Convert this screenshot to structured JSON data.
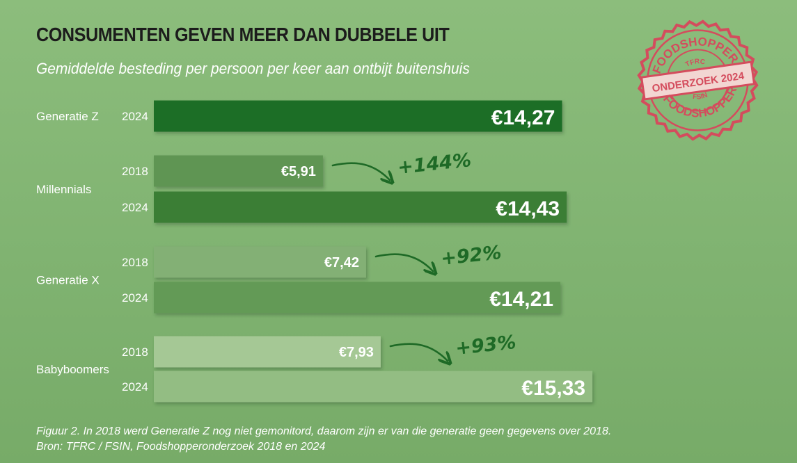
{
  "header": {
    "title": "CONSUMENTEN GEVEN MEER DAN DUBBELE UIT",
    "subtitle": "Gemiddelde besteding per persoon per keer aan ontbijt buitenshuis"
  },
  "stamp": {
    "top_text": "FOODSHOPPER",
    "top_small": "TFRC",
    "center_text": "ONDERZOEK 2024",
    "bottom_small": "FSIN",
    "bottom_text": "FOODSHOPPER",
    "color": "#d44c5d"
  },
  "chart_data": {
    "type": "bar",
    "orientation": "horizontal",
    "title": "CONSUMENTEN GEVEN MEER DAN DUBBELE UIT",
    "subtitle": "Gemiddelde besteding per persoon per keer aan ontbijt buitenshuis",
    "unit": "€",
    "groups": [
      {
        "name": "Generatie Z",
        "bars": [
          {
            "year": "2024",
            "value": 14.27,
            "label": "€14,27",
            "color": "#1f6e25"
          }
        ]
      },
      {
        "name": "Millennials",
        "bars": [
          {
            "year": "2018",
            "value": 5.91,
            "label": "€5,91",
            "color": "#5e9552"
          },
          {
            "year": "2024",
            "value": 14.43,
            "label": "€14,43",
            "color": "#3b7e36"
          }
        ],
        "change": "+144%"
      },
      {
        "name": "Generatie X",
        "bars": [
          {
            "year": "2018",
            "value": 7.42,
            "label": "€7,42",
            "color": "#83b074"
          },
          {
            "year": "2024",
            "value": 14.21,
            "label": "€14,21",
            "color": "#639a56"
          }
        ],
        "change": "+92%"
      },
      {
        "name": "Babyboomers",
        "bars": [
          {
            "year": "2018",
            "value": 7.93,
            "label": "€7,93",
            "color": "#a5c895"
          },
          {
            "year": "2024",
            "value": 15.33,
            "label": "€15,33",
            "color": "#93bd83"
          }
        ],
        "change": "+93%"
      }
    ],
    "accent_color": "#1e6a26"
  },
  "footnote": {
    "line1": "Figuur 2. In 2018 werd Generatie Z nog niet gemonitord, daarom zijn er van die generatie geen gegevens over 2018.",
    "line2": "Bron: TFRC / FSIN, Foodshopperonderzoek 2018 en 2024"
  }
}
